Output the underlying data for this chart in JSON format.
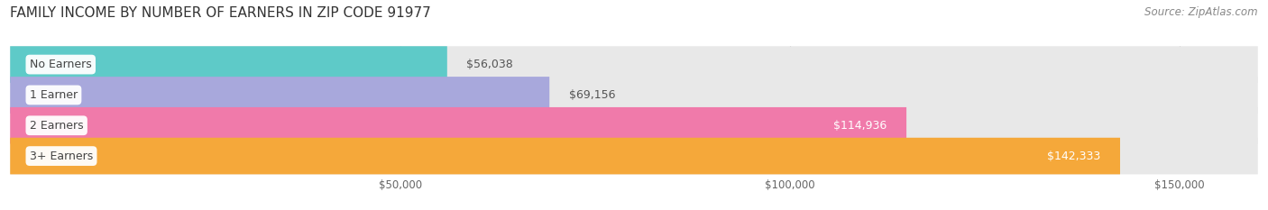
{
  "title": "FAMILY INCOME BY NUMBER OF EARNERS IN ZIP CODE 91977",
  "source": "Source: ZipAtlas.com",
  "categories": [
    "No Earners",
    "1 Earner",
    "2 Earners",
    "3+ Earners"
  ],
  "values": [
    56038,
    69156,
    114936,
    142333
  ],
  "labels": [
    "$56,038",
    "$69,156",
    "$114,936",
    "$142,333"
  ],
  "bar_colors": [
    "#5ecac8",
    "#a8a8dc",
    "#f07aaa",
    "#f5a83a"
  ],
  "row_bg_color": "#e8e8e8",
  "label_colors": [
    "#555555",
    "#555555",
    "#ffffff",
    "#ffffff"
  ],
  "xmin": 0,
  "xmax": 160000,
  "xticks": [
    50000,
    100000,
    150000
  ],
  "xtick_labels": [
    "$50,000",
    "$100,000",
    "$150,000"
  ],
  "background_color": "#ffffff",
  "title_fontsize": 11,
  "source_fontsize": 8.5,
  "bar_label_fontsize": 9,
  "category_fontsize": 9
}
